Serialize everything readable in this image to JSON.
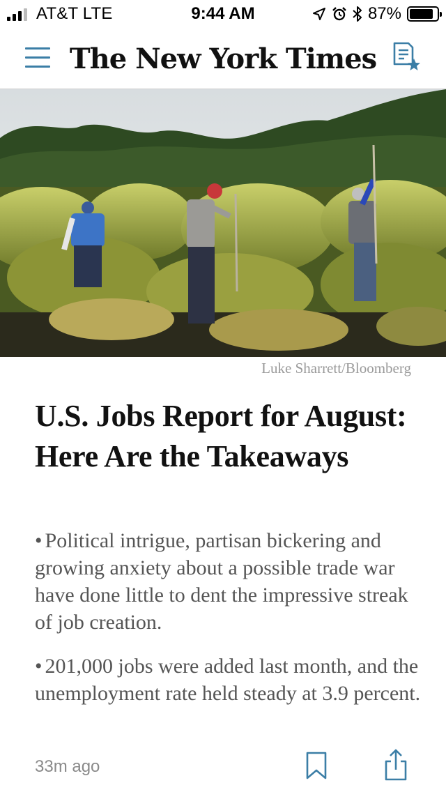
{
  "status_bar": {
    "carrier": "AT&T  LTE",
    "time": "9:44 AM",
    "battery_percent_label": "87%",
    "battery_level": 0.87,
    "icons": [
      "signal-icon",
      "location-arrow-icon",
      "alarm-icon",
      "bluetooth-icon",
      "battery-icon"
    ]
  },
  "header": {
    "masthead": "The New York Times",
    "menu_icon": "hamburger-menu-icon",
    "saved_icon": "saved-articles-icon"
  },
  "hero": {
    "photo_credit": "Luke Sharrett/Bloomberg"
  },
  "article": {
    "headline": "U.S. Jobs Report for August: Here Are the Takeaways",
    "summary_points": [
      "Political intrigue, partisan bickering and growing anxiety about a possible trade war have done little to dent the impressive streak of job creation.",
      "201,000 jobs were added last month, and the unemployment rate held steady at 3.9 percent."
    ],
    "bullet": "•",
    "timestamp": "33m ago"
  },
  "colors": {
    "accent": "#3b7ea6",
    "headline": "#111111",
    "summary": "#555555",
    "muted": "#8a8a8a"
  }
}
